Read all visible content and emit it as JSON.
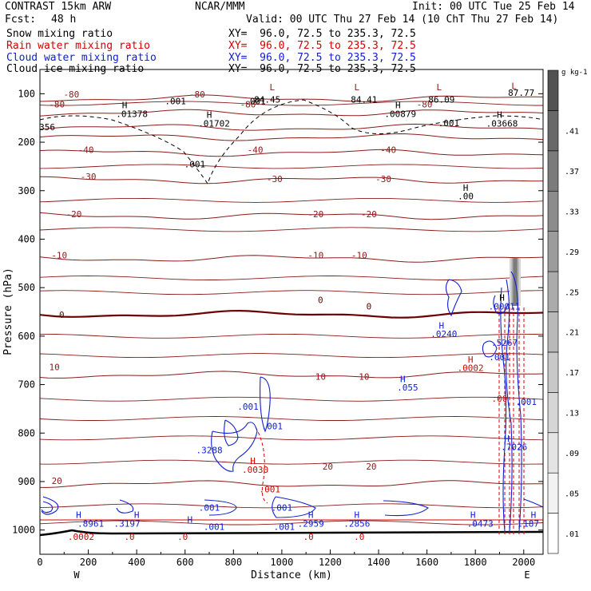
{
  "header": {
    "model": "CONTRAST 15km ARW",
    "org": "NCAR/MMM",
    "init": "Init: 00 UTC Tue 25 Feb 14",
    "fcst_label": "Fcst:",
    "fcst_value": "48 h",
    "valid": "Valid: 00 UTC Thu 27 Feb 14 (10 ChT Thu 27 Feb 14)"
  },
  "legend": [
    {
      "name": "Snow mixing ratio",
      "xy": "XY=  96.0, 72.5 to 235.3, 72.5",
      "color": "#000000"
    },
    {
      "name": "Rain water mixing ratio",
      "xy": "XY=  96.0, 72.5 to 235.3, 72.5",
      "color": "#d40000"
    },
    {
      "name": "Cloud water mixing ratio",
      "xy": "XY=  96.0, 72.5 to 235.3, 72.5",
      "color": "#1020d0"
    },
    {
      "name": "Cloud ice mixing ratio",
      "xy": "XY=  96.0, 72.5 to 235.3, 72.5",
      "color": "#000000"
    }
  ],
  "chart_data": {
    "type": "cross-section",
    "xlabel": "Distance (km)",
    "ylabel": "Pressure (hPa)",
    "xlim": [
      0,
      2080
    ],
    "ylim": [
      1050,
      50
    ],
    "x_ticks": [
      0,
      200,
      400,
      600,
      800,
      1000,
      1200,
      1400,
      1600,
      1800,
      2000
    ],
    "y_ticks": [
      100,
      200,
      300,
      400,
      500,
      600,
      700,
      800,
      900,
      1000
    ],
    "endpoints": {
      "left": "W",
      "right": "E"
    },
    "colorbar": {
      "unit": "g kg-1",
      "levels": [
        ".01",
        ".05",
        ".09",
        ".13",
        ".17",
        ".21",
        ".25",
        ".29",
        ".33",
        ".37",
        ".41"
      ],
      "colors": [
        "#ffffff",
        "#f2f2f2",
        "#e4e4e4",
        "#d6d6d6",
        "#c8c8c8",
        "#b9b9b9",
        "#ababab",
        "#9c9c9c",
        "#8c8c8c",
        "#7b7b7b",
        "#686868",
        "#525252"
      ]
    },
    "temperature_isotherms": [
      {
        "label": "-80",
        "p": 110
      },
      {
        "label": "-70",
        "p": 140
      },
      {
        "label": "-60",
        "p": 170
      },
      {
        "label": "-50",
        "p": 190
      },
      {
        "label": "-40",
        "p": 222
      },
      {
        "label": "-30",
        "p": 278
      },
      {
        "label": "-20",
        "p": 352
      },
      {
        "label": "-10",
        "p": 440
      },
      {
        "label": "0",
        "p": 555
      },
      {
        "label": "10",
        "p": 680
      },
      {
        "label": "20",
        "p": 905
      }
    ],
    "field_labels": [
      {
        "text": "-80",
        "x": 130,
        "p": 108,
        "color": "#8b1a1a"
      },
      {
        "text": "-80",
        "x": 650,
        "p": 108,
        "color": "#8b1a1a"
      },
      {
        "text": "-80",
        "x": 70,
        "p": 128,
        "color": "#8b1a1a"
      },
      {
        "text": "-80",
        "x": 860,
        "p": 128,
        "color": "#8b1a1a"
      },
      {
        "text": "-80",
        "x": 1590,
        "p": 128,
        "color": "#8b1a1a"
      },
      {
        "text": "-40",
        "x": 190,
        "p": 222,
        "color": "#8b1a1a"
      },
      {
        "text": "-40",
        "x": 890,
        "p": 222,
        "color": "#8b1a1a"
      },
      {
        "text": "-40",
        "x": 1440,
        "p": 222,
        "color": "#8b1a1a"
      },
      {
        "text": "-30",
        "x": 200,
        "p": 277,
        "color": "#8b1a1a"
      },
      {
        "text": "-30",
        "x": 970,
        "p": 282,
        "color": "#8b1a1a"
      },
      {
        "text": "-30",
        "x": 1420,
        "p": 282,
        "color": "#8b1a1a"
      },
      {
        "text": "-20",
        "x": 140,
        "p": 355,
        "color": "#8b1a1a"
      },
      {
        "text": "-20",
        "x": 1140,
        "p": 355,
        "color": "#8b1a1a"
      },
      {
        "text": "-20",
        "x": 1360,
        "p": 355,
        "color": "#8b1a1a"
      },
      {
        "text": "-10",
        "x": 80,
        "p": 440,
        "color": "#8b1a1a"
      },
      {
        "text": "-10",
        "x": 1140,
        "p": 440,
        "color": "#8b1a1a"
      },
      {
        "text": "-10",
        "x": 1320,
        "p": 440,
        "color": "#8b1a1a"
      },
      {
        "text": "0",
        "x": 90,
        "p": 562,
        "color": "#6b0000"
      },
      {
        "text": "0",
        "x": 1160,
        "p": 532,
        "color": "#6b0000"
      },
      {
        "text": "0",
        "x": 1360,
        "p": 545,
        "color": "#6b0000"
      },
      {
        "text": "10",
        "x": 60,
        "p": 670,
        "color": "#8b1a1a"
      },
      {
        "text": "10",
        "x": 1160,
        "p": 690,
        "color": "#8b1a1a"
      },
      {
        "text": "10",
        "x": 1340,
        "p": 690,
        "color": "#8b1a1a"
      },
      {
        "text": "20",
        "x": 70,
        "p": 905,
        "color": "#8b1a1a"
      },
      {
        "text": "20",
        "x": 1190,
        "p": 875,
        "color": "#8b1a1a"
      },
      {
        "text": "20",
        "x": 1370,
        "p": 875,
        "color": "#8b1a1a"
      },
      {
        "text": ".001",
        "x": 560,
        "p": 122,
        "color": "#000000"
      },
      {
        "text": ".001",
        "x": 890,
        "p": 122,
        "color": "#000000"
      },
      {
        "text": ".001",
        "x": 1690,
        "p": 167,
        "color": "#000000"
      },
      {
        "text": ".001",
        "x": 640,
        "p": 252,
        "color": "#000000"
      },
      {
        "text": "84.45",
        "x": 940,
        "p": 118,
        "color": "#000000"
      },
      {
        "text": "84.41",
        "x": 1340,
        "p": 118,
        "color": "#000000"
      },
      {
        "text": "86.09",
        "x": 1660,
        "p": 118,
        "color": "#000000"
      },
      {
        "text": "87.77",
        "x": 1990,
        "p": 104,
        "color": "#000000"
      },
      {
        "text": ".01378",
        "x": 380,
        "p": 148,
        "color": "#000000"
      },
      {
        "text": ".01702",
        "x": 720,
        "p": 168,
        "color": "#000000"
      },
      {
        "text": ".00879",
        "x": 1490,
        "p": 148,
        "color": "#000000"
      },
      {
        "text": ".03668",
        "x": 1910,
        "p": 168,
        "color": "#000000"
      },
      {
        "text": "356",
        "x": 30,
        "p": 175,
        "color": "#000000"
      },
      {
        "text": ".00",
        "x": 1760,
        "p": 318,
        "color": "#000000"
      },
      {
        "text": ".0240",
        "x": 1670,
        "p": 602,
        "color": "#1020d0"
      },
      {
        "text": ".055",
        "x": 1520,
        "p": 712,
        "color": "#1020d0"
      },
      {
        "text": ".001",
        "x": 1900,
        "p": 650,
        "color": "#1020d0"
      },
      {
        "text": ".001",
        "x": 2010,
        "p": 742,
        "color": "#1020d0"
      },
      {
        "text": ".001",
        "x": 860,
        "p": 752,
        "color": "#1020d0"
      },
      {
        "text": ".001",
        "x": 960,
        "p": 792,
        "color": "#1020d0"
      },
      {
        "text": ".3288",
        "x": 700,
        "p": 842,
        "color": "#1020d0"
      },
      {
        "text": ".7026",
        "x": 1960,
        "p": 835,
        "color": "#1020d0"
      },
      {
        "text": ".5267",
        "x": 1920,
        "p": 620,
        "color": "#1020d0"
      },
      {
        "text": ".00011",
        "x": 1920,
        "p": 545,
        "color": "#1020d0"
      },
      {
        "text": ".001",
        "x": 700,
        "p": 960,
        "color": "#1020d0"
      },
      {
        "text": ".001",
        "x": 1000,
        "p": 960,
        "color": "#1020d0"
      },
      {
        "text": ".001",
        "x": 1010,
        "p": 1000,
        "color": "#1020d0"
      },
      {
        "text": ".001",
        "x": 720,
        "p": 1000,
        "color": "#1020d0"
      },
      {
        "text": ".8961",
        "x": 210,
        "p": 993,
        "color": "#1020d0"
      },
      {
        "text": ".3197",
        "x": 360,
        "p": 993,
        "color": "#1020d0"
      },
      {
        "text": ".2959",
        "x": 1120,
        "p": 993,
        "color": "#1020d0"
      },
      {
        "text": ".2856",
        "x": 1310,
        "p": 993,
        "color": "#1020d0"
      },
      {
        "text": ".0473",
        "x": 1820,
        "p": 993,
        "color": "#1020d0"
      },
      {
        "text": ".187",
        "x": 2020,
        "p": 993,
        "color": "#1020d0"
      },
      {
        "text": ".0002",
        "x": 1780,
        "p": 672,
        "color": "#d40000"
      },
      {
        "text": ".0030",
        "x": 890,
        "p": 882,
        "color": "#d40000"
      },
      {
        "text": ".001",
        "x": 950,
        "p": 922,
        "color": "#d40000"
      },
      {
        "text": ".0002",
        "x": 170,
        "p": 1020,
        "color": "#d40000"
      },
      {
        "text": ".0",
        "x": 370,
        "p": 1020,
        "color": "#d40000"
      },
      {
        "text": ".0",
        "x": 590,
        "p": 1020,
        "color": "#d40000"
      },
      {
        "text": ".0",
        "x": 1110,
        "p": 1020,
        "color": "#d40000"
      },
      {
        "text": ".0",
        "x": 1320,
        "p": 1020,
        "color": "#d40000"
      },
      {
        "text": ".00",
        "x": 1900,
        "p": 735,
        "color": "#d40000"
      }
    ],
    "markers": [
      {
        "text": "L",
        "x": 960,
        "p": 93,
        "color": "#8b1a1a"
      },
      {
        "text": "L",
        "x": 1310,
        "p": 93,
        "color": "#8b1a1a"
      },
      {
        "text": "L",
        "x": 1650,
        "p": 93,
        "color": "#8b1a1a"
      },
      {
        "text": "L",
        "x": 1960,
        "p": 90,
        "color": "#8b1a1a"
      },
      {
        "text": "H",
        "x": 350,
        "p": 130,
        "color": "#000000"
      },
      {
        "text": "H",
        "x": 700,
        "p": 150,
        "color": "#000000"
      },
      {
        "text": "H",
        "x": 1480,
        "p": 130,
        "color": "#000000"
      },
      {
        "text": "H",
        "x": 1900,
        "p": 150,
        "color": "#000000"
      },
      {
        "text": "H",
        "x": 1760,
        "p": 300,
        "color": "#000000"
      },
      {
        "text": "H",
        "x": 1660,
        "p": 585,
        "color": "#1020d0"
      },
      {
        "text": "H",
        "x": 1910,
        "p": 527,
        "color": "#000000"
      },
      {
        "text": "H",
        "x": 1500,
        "p": 695,
        "color": "#1020d0"
      },
      {
        "text": "H",
        "x": 1780,
        "p": 655,
        "color": "#d40000"
      },
      {
        "text": "H",
        "x": 880,
        "p": 864,
        "color": "#d40000"
      },
      {
        "text": "H",
        "x": 1930,
        "p": 818,
        "color": "#1020d0"
      },
      {
        "text": "H",
        "x": 160,
        "p": 975,
        "color": "#1020d0"
      },
      {
        "text": "H",
        "x": 400,
        "p": 975,
        "color": "#1020d0"
      },
      {
        "text": "H",
        "x": 1120,
        "p": 975,
        "color": "#1020d0"
      },
      {
        "text": "H",
        "x": 1310,
        "p": 975,
        "color": "#1020d0"
      },
      {
        "text": "H",
        "x": 1790,
        "p": 975,
        "color": "#1020d0"
      },
      {
        "text": "H",
        "x": 2040,
        "p": 975,
        "color": "#1020d0"
      },
      {
        "text": "H",
        "x": 620,
        "p": 985,
        "color": "#1020d0"
      }
    ]
  }
}
